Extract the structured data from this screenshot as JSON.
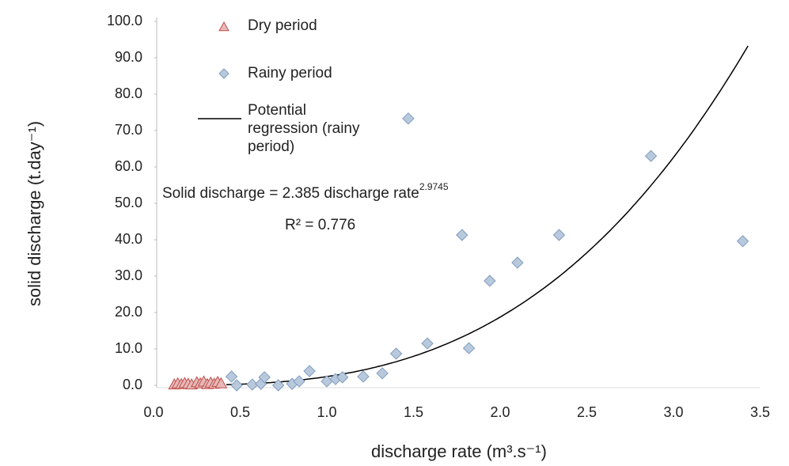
{
  "chart_data": {
    "type": "scatter",
    "xlabel": "discharge rate (m³.s⁻¹)",
    "ylabel": "solid discharge (t.day⁻¹)",
    "xlim": [
      0,
      3.5
    ],
    "ylim": [
      0,
      100
    ],
    "xticks": [
      {
        "value": 0,
        "label": "0.0"
      },
      {
        "value": 0.5,
        "label": "0.5"
      },
      {
        "value": 1,
        "label": "1.0"
      },
      {
        "value": 1.5,
        "label": "1.5"
      },
      {
        "value": 2,
        "label": "2.0"
      },
      {
        "value": 2.5,
        "label": "2.5"
      },
      {
        "value": 3,
        "label": "3.0"
      },
      {
        "value": 3.5,
        "label": "3.5"
      }
    ],
    "yticks": [
      {
        "value": 0,
        "label": "0.0"
      },
      {
        "value": 10,
        "label": "10.0"
      },
      {
        "value": 20,
        "label": "20.0"
      },
      {
        "value": 30,
        "label": "30.0"
      },
      {
        "value": 40,
        "label": "40.0"
      },
      {
        "value": 50,
        "label": "50.0"
      },
      {
        "value": 60,
        "label": "60.0"
      },
      {
        "value": 70,
        "label": "70.0"
      },
      {
        "value": 80,
        "label": "80.0"
      },
      {
        "value": 90,
        "label": "90.0"
      },
      {
        "value": 100,
        "label": "100.0"
      }
    ],
    "series": [
      {
        "name": "Dry period",
        "marker": "triangle",
        "color": "#c0504d",
        "fill": "#e6b9b8",
        "x": [
          0.12,
          0.14,
          0.16,
          0.18,
          0.2,
          0.22,
          0.25,
          0.27,
          0.29,
          0.31,
          0.33,
          0.35,
          0.37,
          0.39
        ],
        "values": [
          0.2,
          0.5,
          0.3,
          0.6,
          0.4,
          0.2,
          0.8,
          0.5,
          1.0,
          0.3,
          0.7,
          0.4,
          0.9,
          0.5
        ]
      },
      {
        "name": "Rainy period",
        "marker": "diamond",
        "color": "#7f9cc0",
        "fill": "#b9c9dc",
        "x": [
          0.45,
          0.48,
          0.57,
          0.62,
          0.64,
          0.72,
          0.8,
          0.84,
          0.9,
          1.0,
          1.05,
          1.09,
          1.21,
          1.32,
          1.4,
          1.47,
          1.58,
          1.78,
          1.82,
          1.94,
          2.1,
          2.34,
          2.87,
          3.4
        ],
        "values": [
          2.4,
          0.0,
          0.2,
          0.4,
          2.2,
          0.0,
          0.4,
          1.1,
          3.9,
          1.1,
          1.7,
          2.2,
          2.4,
          3.3,
          8.7,
          73.3,
          11.5,
          41.3,
          10.2,
          28.7,
          33.7,
          41.3,
          63.0,
          39.6
        ]
      }
    ],
    "regression": {
      "name": "Potential regression (rainy period)",
      "color": "#000000",
      "equation_left": "Solid discharge = ",
      "coefficient": 2.385,
      "variable": " discharge rate",
      "exponent": 2.9745,
      "r2_label": "R² = ",
      "r2": 0.776,
      "x_start": 0.42,
      "x_end": 3.43
    }
  }
}
